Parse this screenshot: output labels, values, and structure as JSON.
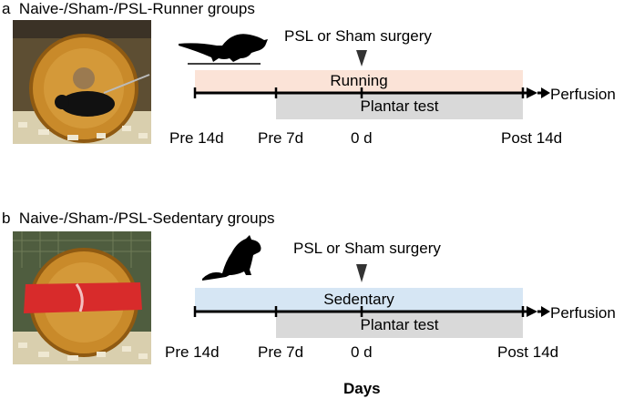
{
  "panel_a": {
    "letter": "a",
    "title": "Naive-/Sham-/PSL-Runner groups",
    "surgery_label": "PSL or Sham surgery",
    "band_top_label": "Running",
    "band_bottom_label": "Plantar test",
    "end_label": "Perfusion",
    "ticks": [
      "Pre 14d",
      "Pre 7d",
      "0 d",
      "Post 14d"
    ],
    "band_top_color": "#fbe3d7",
    "band_bottom_color": "#d9d9d9",
    "icons": [
      "running-mouse-icon",
      "running-wheel-photo"
    ]
  },
  "panel_b": {
    "letter": "b",
    "title": "Naive-/Sham-/PSL-Sedentary groups",
    "surgery_label": "PSL or Sham surgery",
    "band_top_label": "Sedentary",
    "band_bottom_label": "Plantar test",
    "end_label": "Perfusion",
    "ticks": [
      "Pre 14d",
      "Pre 7d",
      "0 d",
      "Post 14d"
    ],
    "band_top_color": "#d6e6f4",
    "band_bottom_color": "#d9d9d9",
    "icons": [
      "sitting-mouse-icon",
      "locked-wheel-photo"
    ]
  },
  "axis_label": "Days"
}
